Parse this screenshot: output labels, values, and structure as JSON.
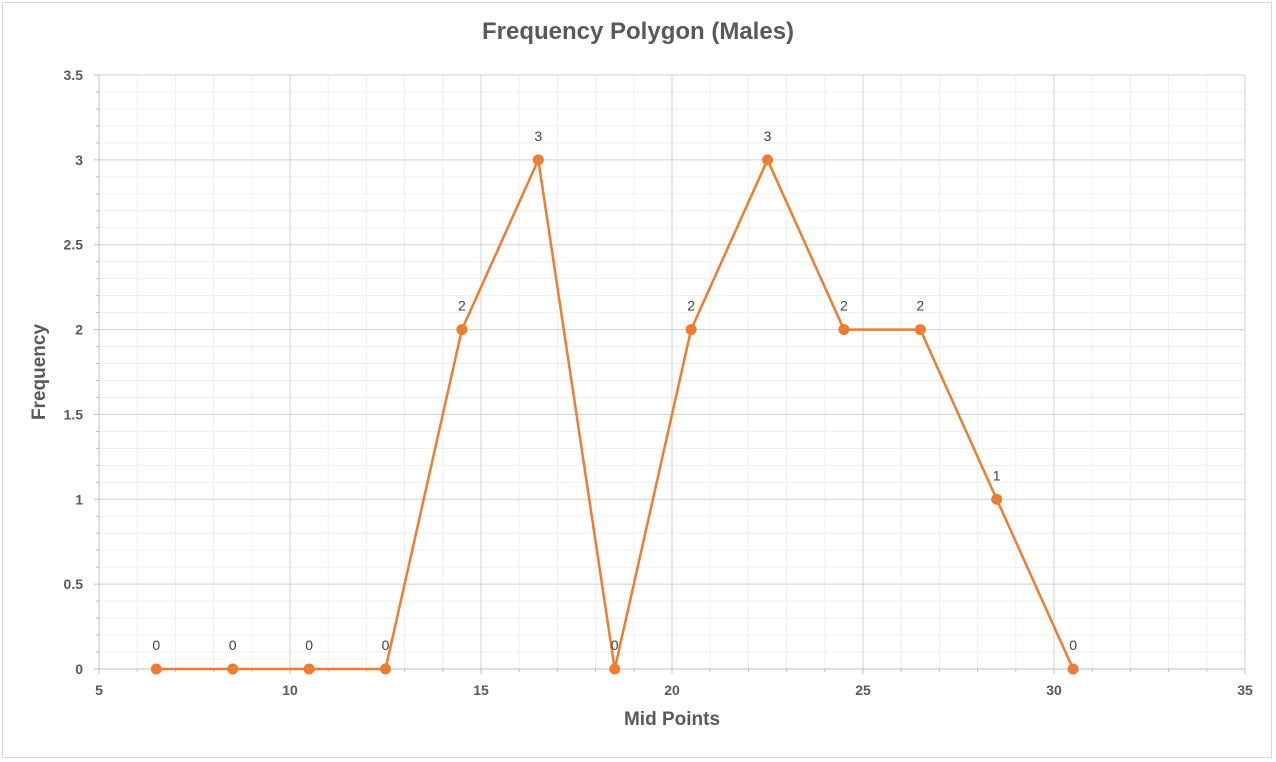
{
  "chart_data": {
    "type": "line",
    "title": "Frequency Polygon (Males)",
    "xlabel": "Mid Points",
    "ylabel": "Frequency",
    "xlim": [
      5,
      35
    ],
    "ylim": [
      0,
      3.5
    ],
    "x_ticks": [
      "5",
      "10",
      "15",
      "20",
      "25",
      "30",
      "35"
    ],
    "y_ticks": [
      "0",
      "0.5",
      "1",
      "1.5",
      "2",
      "2.5",
      "3",
      "3.5"
    ],
    "grid": true,
    "legend": "none",
    "series": [
      {
        "x": [
          6.5,
          8.5,
          10.5,
          12.5,
          14.5,
          16.5,
          18.5,
          20.5,
          22.5,
          24.5,
          26.5,
          28.5,
          30.5
        ],
        "y": [
          0,
          0,
          0,
          0,
          2,
          3,
          0,
          2,
          3,
          2,
          2,
          1,
          0
        ],
        "labels": [
          "0",
          "0",
          "0",
          "0",
          "2",
          "3",
          "0",
          "2",
          "3",
          "2",
          "2",
          "1",
          "0"
        ],
        "color": "#ed7d31"
      }
    ]
  }
}
